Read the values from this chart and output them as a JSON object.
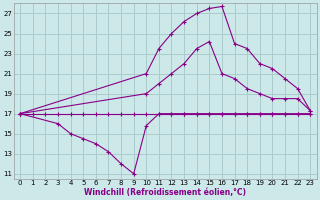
{
  "background_color": "#cce8e8",
  "grid_color": "#aacccc",
  "line_color": "#880088",
  "xlabel": "Windchill (Refroidissement éolien,°C)",
  "xlim": [
    -0.5,
    23.5
  ],
  "ylim": [
    10.5,
    28.0
  ],
  "yticks": [
    11,
    13,
    15,
    17,
    19,
    21,
    23,
    25,
    27
  ],
  "xticks": [
    0,
    1,
    2,
    3,
    4,
    5,
    6,
    7,
    8,
    9,
    10,
    11,
    12,
    13,
    14,
    15,
    16,
    17,
    18,
    19,
    20,
    21,
    22,
    23
  ],
  "line_flat_x": [
    0,
    1,
    2,
    3,
    4,
    5,
    6,
    7,
    8,
    9,
    10,
    11,
    12,
    13,
    14,
    15,
    16,
    17,
    18,
    19,
    20,
    21,
    22,
    23
  ],
  "line_flat_y": [
    17.0,
    17.0,
    17.0,
    17.0,
    17.0,
    17.0,
    17.0,
    17.0,
    17.0,
    17.0,
    17.0,
    17.0,
    17.0,
    17.0,
    17.0,
    17.0,
    17.0,
    17.0,
    17.0,
    17.0,
    17.0,
    17.0,
    17.0,
    17.0
  ],
  "line_dip_x": [
    0,
    3,
    4,
    5,
    6,
    7,
    8,
    9,
    10,
    11,
    12,
    13,
    14,
    15,
    16,
    17,
    18,
    19,
    20,
    21,
    22,
    23
  ],
  "line_dip_y": [
    17.0,
    16.0,
    15.0,
    14.5,
    14.0,
    13.2,
    12.0,
    11.0,
    15.8,
    17.0,
    17.0,
    17.0,
    17.0,
    17.0,
    17.0,
    17.0,
    17.0,
    17.0,
    17.0,
    17.0,
    17.0,
    17.0
  ],
  "line_mid_x": [
    0,
    10,
    11,
    12,
    13,
    14,
    15,
    16,
    17,
    18,
    19,
    20,
    21,
    22,
    23
  ],
  "line_mid_y": [
    17.0,
    19.0,
    20.0,
    21.0,
    22.0,
    23.5,
    24.2,
    21.0,
    20.5,
    19.5,
    19.0,
    18.5,
    18.5,
    18.5,
    17.3
  ],
  "line_top_x": [
    0,
    10,
    11,
    12,
    13,
    14,
    15,
    16,
    17,
    18,
    19,
    20,
    21,
    22,
    23
  ],
  "line_top_y": [
    17.0,
    21.0,
    23.5,
    25.0,
    26.2,
    27.0,
    27.5,
    27.7,
    24.0,
    23.5,
    22.0,
    21.5,
    20.5,
    19.5,
    17.3
  ]
}
